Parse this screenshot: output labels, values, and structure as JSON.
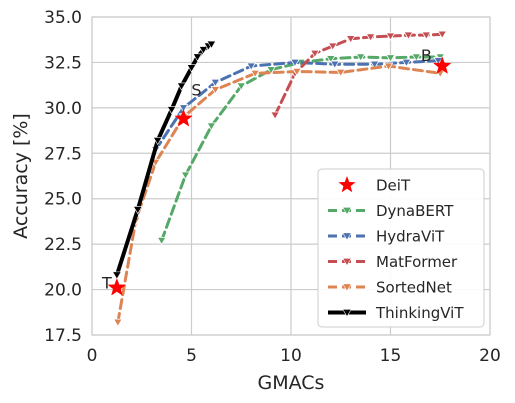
{
  "chart_data": {
    "type": "line",
    "xlabel": "GMACs",
    "ylabel": "Accuracy [%]",
    "xlim": [
      0,
      20
    ],
    "ylim": [
      17.5,
      35.0
    ],
    "xticks": [
      0,
      5,
      10,
      15,
      20
    ],
    "yticks": [
      17.5,
      20.0,
      22.5,
      25.0,
      27.5,
      30.0,
      32.5,
      35.0
    ],
    "grid": true,
    "legend_position": "lower-right",
    "series": [
      {
        "name": "DeiT",
        "style": "star-markers",
        "color": "#ff0000",
        "points": [
          [
            1.25,
            20.1
          ],
          [
            4.6,
            29.4
          ],
          [
            17.6,
            32.3
          ]
        ]
      },
      {
        "name": "DynaBERT",
        "style": "dashed",
        "color": "#55a868",
        "points": [
          [
            3.5,
            22.7
          ],
          [
            4.7,
            26.3
          ],
          [
            6.0,
            29.0
          ],
          [
            7.5,
            31.2
          ],
          [
            9.0,
            32.1
          ],
          [
            10.5,
            32.5
          ],
          [
            12.0,
            32.7
          ],
          [
            13.5,
            32.8
          ],
          [
            15.0,
            32.75
          ],
          [
            16.3,
            32.8
          ],
          [
            17.5,
            32.8
          ]
        ]
      },
      {
        "name": "HydraViT",
        "style": "dashed",
        "color": "#4c72b0",
        "points": [
          [
            3.2,
            27.7
          ],
          [
            4.6,
            30.0
          ],
          [
            6.2,
            31.4
          ],
          [
            8.0,
            32.3
          ],
          [
            10.2,
            32.5
          ],
          [
            12.2,
            32.4
          ],
          [
            14.2,
            32.4
          ],
          [
            15.8,
            32.5
          ],
          [
            17.4,
            32.6
          ]
        ]
      },
      {
        "name": "MatFormer",
        "style": "dashed",
        "color": "#c44e52",
        "points": [
          [
            9.2,
            29.6
          ],
          [
            10.2,
            31.9
          ],
          [
            11.2,
            33.0
          ],
          [
            12.1,
            33.4
          ],
          [
            13.0,
            33.8
          ],
          [
            14.0,
            33.9
          ],
          [
            15.0,
            33.95
          ],
          [
            15.9,
            34.0
          ],
          [
            16.8,
            34.0
          ],
          [
            17.6,
            34.05
          ]
        ]
      },
      {
        "name": "SortedNet",
        "style": "dashed",
        "color": "#dd8452",
        "points": [
          [
            1.3,
            18.2
          ],
          [
            2.2,
            23.8
          ],
          [
            3.2,
            27.0
          ],
          [
            4.6,
            29.5
          ],
          [
            6.2,
            31.0
          ],
          [
            8.2,
            31.9
          ],
          [
            10.3,
            32.0
          ],
          [
            12.5,
            31.95
          ],
          [
            14.9,
            32.3
          ],
          [
            17.5,
            31.9
          ]
        ]
      },
      {
        "name": "ThinkingViT",
        "style": "solid-thick",
        "color": "#000000",
        "points": [
          [
            1.25,
            20.8
          ],
          [
            2.3,
            24.4
          ],
          [
            3.3,
            28.2
          ],
          [
            4.0,
            29.9
          ],
          [
            4.5,
            31.2
          ],
          [
            5.0,
            32.2
          ],
          [
            5.3,
            32.8
          ],
          [
            5.6,
            33.2
          ],
          [
            5.85,
            33.4
          ],
          [
            6.0,
            33.5
          ]
        ]
      }
    ],
    "annotations": [
      {
        "text": "T",
        "x": 0.75,
        "y": 20.4
      },
      {
        "text": "S",
        "x": 5.25,
        "y": 31.0
      },
      {
        "text": "B",
        "x": 16.8,
        "y": 32.9
      }
    ]
  }
}
